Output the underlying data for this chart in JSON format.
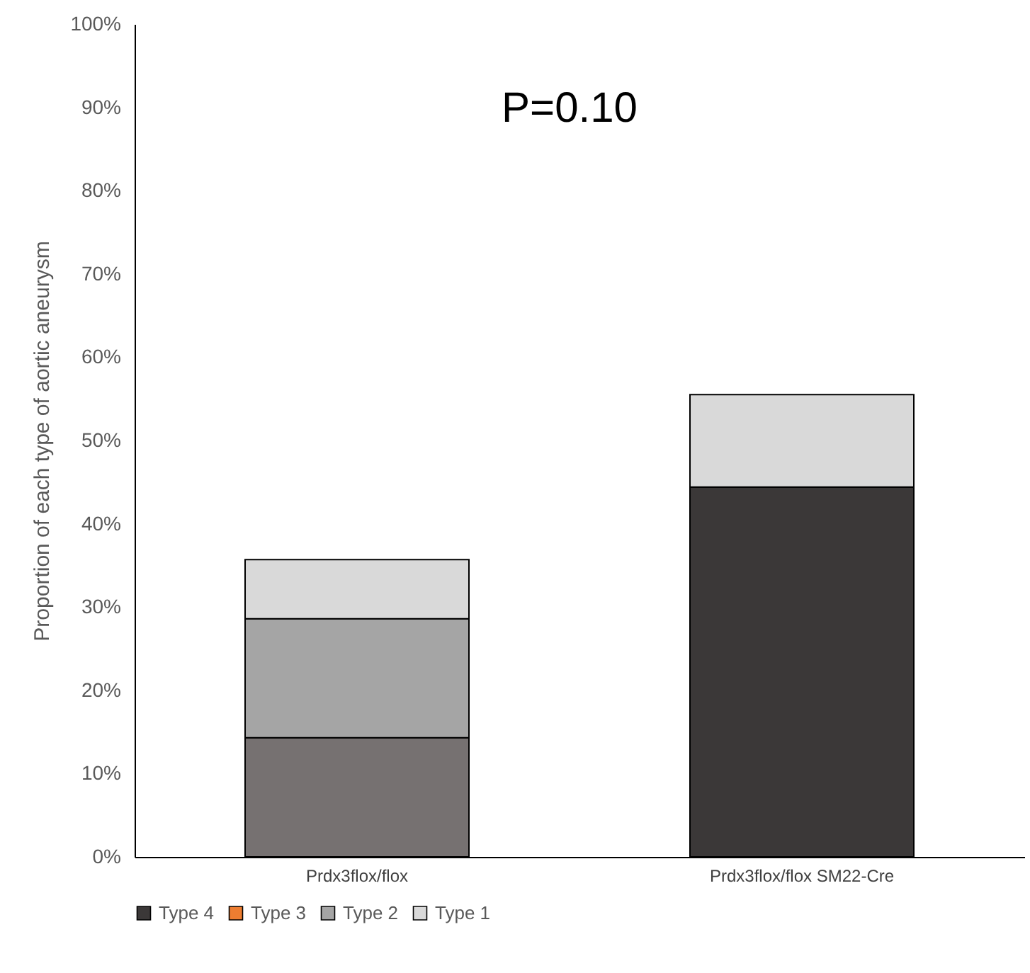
{
  "chart_data": {
    "type": "bar",
    "stacked": true,
    "ylabel": "Proportion of each type of aortic aneurysm",
    "categories": [
      "Prdx3flox/flox",
      "Prdx3flox/flox SM22-Cre"
    ],
    "series": [
      {
        "name": "Type 4",
        "color": "#3b3838",
        "values": [
          0,
          44.4
        ]
      },
      {
        "name": "Type 3",
        "color": "#ed7d31",
        "colors": [
          "#767171",
          "#767171"
        ],
        "values": [
          14.3,
          0
        ]
      },
      {
        "name": "Type 2",
        "color": "#a5a5a5",
        "values": [
          14.3,
          0
        ]
      },
      {
        "name": "Type 1",
        "color": "#d9d9d9",
        "values": [
          7.1,
          11.1
        ]
      }
    ],
    "ylim": [
      0,
      100
    ],
    "yticks": [
      {
        "value": 0,
        "label": "0%"
      },
      {
        "value": 10,
        "label": "10%"
      },
      {
        "value": 20,
        "label": "20%"
      },
      {
        "value": 30,
        "label": "30%"
      },
      {
        "value": 40,
        "label": "40%"
      },
      {
        "value": 50,
        "label": "50%"
      },
      {
        "value": 60,
        "label": "60%"
      },
      {
        "value": 70,
        "label": "70%"
      },
      {
        "value": 80,
        "label": "80%"
      },
      {
        "value": 90,
        "label": "90%"
      },
      {
        "value": 100,
        "label": "100%"
      }
    ],
    "grid": false,
    "legend": "bottom",
    "annotations": [
      "P=0.10"
    ]
  }
}
